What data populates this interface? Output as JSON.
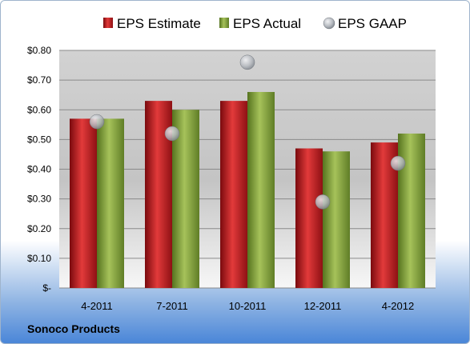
{
  "company_name": "Sonoco Products",
  "chart_data": {
    "type": "bar",
    "categories": [
      "4-2011",
      "7-2011",
      "10-2011",
      "12-2011",
      "4-2012"
    ],
    "series": [
      {
        "name": "EPS Estimate",
        "kind": "bar",
        "color": "#c0171d",
        "values": [
          0.57,
          0.63,
          0.63,
          0.47,
          0.49
        ]
      },
      {
        "name": "EPS Actual",
        "kind": "bar",
        "color": "#8caa3c",
        "values": [
          0.57,
          0.6,
          0.66,
          0.46,
          0.52
        ]
      },
      {
        "name": "EPS GAAP",
        "kind": "marker",
        "color": "#b8bcc2",
        "values": [
          0.56,
          0.52,
          0.76,
          0.29,
          0.42
        ]
      }
    ],
    "y_ticks": [
      {
        "value": 0,
        "label": "$-"
      },
      {
        "value": 0.1,
        "label": "$0.10"
      },
      {
        "value": 0.2,
        "label": "$0.20"
      },
      {
        "value": 0.3,
        "label": "$0.30"
      },
      {
        "value": 0.4,
        "label": "$0.40"
      },
      {
        "value": 0.5,
        "label": "$0.50"
      },
      {
        "value": 0.6,
        "label": "$0.60"
      },
      {
        "value": 0.7,
        "label": "$0.70"
      },
      {
        "value": 0.8,
        "label": "$0.80"
      }
    ],
    "ylim": [
      0,
      0.8
    ],
    "grid": true,
    "legend_position": "top"
  }
}
